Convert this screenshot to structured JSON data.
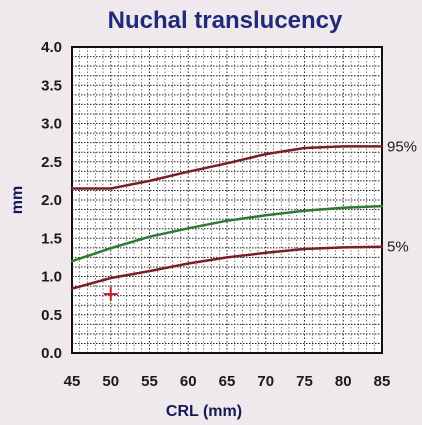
{
  "chart_data": {
    "type": "line",
    "title": "Nuchal translucency",
    "xlabel": "CRL (mm)",
    "ylabel": "mm",
    "xlim": [
      45,
      85
    ],
    "ylim": [
      0,
      4
    ],
    "x_ticks": [
      "45",
      "50",
      "55",
      "60",
      "65",
      "70",
      "75",
      "80",
      "85"
    ],
    "y_ticks": [
      "0.0",
      "0.5",
      "1.0",
      "1.5",
      "2.0",
      "2.5",
      "3.0",
      "3.5",
      "4.0"
    ],
    "grid": true,
    "series": [
      {
        "name": "95%",
        "color": "#7a1f2a",
        "x": [
          45,
          50,
          55,
          60,
          65,
          70,
          75,
          80,
          85
        ],
        "y": [
          2.15,
          2.15,
          2.25,
          2.37,
          2.48,
          2.6,
          2.68,
          2.7,
          2.7
        ]
      },
      {
        "name": "",
        "color": "#2f7a34",
        "x": [
          45,
          50,
          55,
          60,
          65,
          70,
          75,
          80,
          85
        ],
        "y": [
          1.2,
          1.37,
          1.52,
          1.63,
          1.73,
          1.8,
          1.86,
          1.9,
          1.92
        ]
      },
      {
        "name": "5%",
        "color": "#7a1f2a",
        "x": [
          45,
          50,
          55,
          60,
          65,
          70,
          75,
          80,
          85
        ],
        "y": [
          0.84,
          0.98,
          1.07,
          1.17,
          1.25,
          1.31,
          1.36,
          1.38,
          1.39
        ]
      }
    ],
    "markers": [
      {
        "x": 50,
        "y": 0.77,
        "symbol": "+",
        "color": "#c4202a"
      }
    ]
  }
}
